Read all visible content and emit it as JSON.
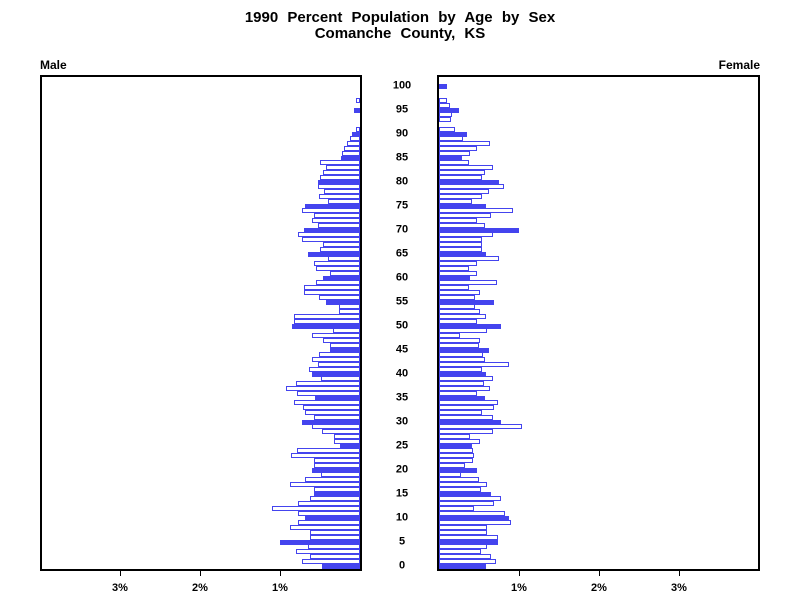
{
  "chart_data": {
    "type": "bar",
    "variant": "population-pyramid",
    "title_line1": "1990 Percent Population by Age by Sex",
    "title_line2": "Comanche County, KS",
    "left_panel_label": "Male",
    "right_panel_label": "Female",
    "age_min": 0,
    "age_max": 100,
    "age_tick_step": 5,
    "age_tick_labels": [
      "0",
      "5",
      "10",
      "15",
      "20",
      "25",
      "30",
      "35",
      "40",
      "45",
      "50",
      "55",
      "60",
      "65",
      "70",
      "75",
      "80",
      "85",
      "90",
      "95",
      "100"
    ],
    "x_axis_unit": "%",
    "x_tick_labels": [
      "1%",
      "2%",
      "3%"
    ],
    "x_tick_values": [
      1,
      2,
      3
    ],
    "xlim": [
      0,
      4
    ],
    "legend": "solid blue bars mark ages that are multiples of 5; other single-year ages are white bars with blue outline",
    "colors": {
      "bar_blue": "#4444ee",
      "bar_white_fill": "#ffffff",
      "axis": "#000000"
    },
    "series": [
      {
        "name": "Male",
        "unit": "% of population",
        "ages_0_to_100": [
          0.48,
          0.72,
          0.62,
          0.8,
          0.65,
          1.0,
          0.62,
          0.62,
          0.88,
          0.77,
          0.69,
          0.77,
          1.1,
          0.78,
          0.63,
          0.57,
          0.57,
          0.88,
          0.69,
          0.49,
          0.6,
          0.57,
          0.57,
          0.86,
          0.79,
          0.25,
          0.33,
          0.33,
          0.48,
          0.6,
          0.73,
          0.58,
          0.69,
          0.71,
          0.82,
          0.56,
          0.79,
          0.92,
          0.8,
          0.49,
          0.6,
          0.64,
          0.52,
          0.6,
          0.51,
          0.38,
          0.38,
          0.46,
          0.6,
          0.34,
          0.85,
          0.83,
          0.83,
          0.26,
          0.26,
          0.43,
          0.51,
          0.7,
          0.7,
          0.55,
          0.46,
          0.38,
          0.55,
          0.57,
          0.4,
          0.65,
          0.5,
          0.46,
          0.72,
          0.78,
          0.7,
          0.53,
          0.6,
          0.57,
          0.73,
          0.69,
          0.4,
          0.51,
          0.45,
          0.52,
          0.53,
          0.5,
          0.46,
          0.43,
          0.5,
          0.24,
          0.22,
          0.2,
          0.16,
          0.13,
          0.1,
          0.05,
          0,
          0,
          0,
          0.07,
          0,
          0.05,
          0,
          0,
          0
        ]
      },
      {
        "name": "Female",
        "unit": "% of population",
        "ages_0_to_100": [
          0.59,
          0.71,
          0.65,
          0.53,
          0.6,
          0.74,
          0.74,
          0.6,
          0.6,
          0.9,
          0.87,
          0.83,
          0.44,
          0.69,
          0.77,
          0.65,
          0.53,
          0.6,
          0.5,
          0.27,
          0.47,
          0.33,
          0.42,
          0.44,
          0.43,
          0.41,
          0.51,
          0.39,
          0.67,
          1.04,
          0.77,
          0.68,
          0.54,
          0.69,
          0.74,
          0.58,
          0.48,
          0.64,
          0.56,
          0.68,
          0.59,
          0.54,
          0.87,
          0.57,
          0.55,
          0.63,
          0.5,
          0.51,
          0.26,
          0.6,
          0.77,
          0.48,
          0.59,
          0.51,
          0.45,
          0.69,
          0.45,
          0.51,
          0.38,
          0.73,
          0.39,
          0.47,
          0.37,
          0.48,
          0.75,
          0.59,
          0.54,
          0.54,
          0.54,
          0.68,
          1.0,
          0.58,
          0.48,
          0.65,
          0.93,
          0.59,
          0.41,
          0.54,
          0.63,
          0.81,
          0.75,
          0.54,
          0.58,
          0.68,
          0.38,
          0.29,
          0.39,
          0.48,
          0.64,
          0.3,
          0.35,
          0.2,
          0,
          0.15,
          0.16,
          0.25,
          0.14,
          0.1,
          0,
          0,
          0.1
        ]
      }
    ]
  }
}
